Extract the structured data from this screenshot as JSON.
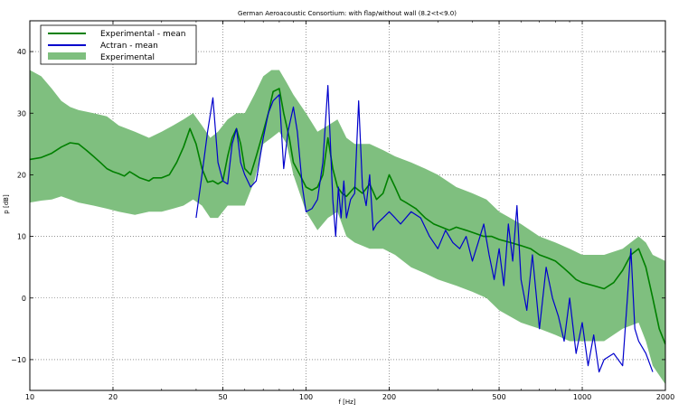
{
  "chart_data": {
    "type": "line",
    "title": "German Aeroacoustic Consortium: with flap/without wall (8.2<t<9.0)",
    "xlabel": "f [Hz]",
    "ylabel": "p [dB]",
    "xscale": "log",
    "xlim": [
      10,
      2000
    ],
    "ylim": [
      -15,
      45
    ],
    "grid": true,
    "legend_position": "top-left",
    "xticks": [
      10,
      20,
      50,
      100,
      200,
      500,
      1000,
      2000
    ],
    "xtick_labels": [
      "10",
      "20",
      "50",
      "100",
      "200",
      "500",
      "1000",
      "2000"
    ],
    "yticks": [
      -10,
      0,
      10,
      20,
      30,
      40
    ],
    "ytick_labels": [
      "−10",
      "0",
      "10",
      "20",
      "30",
      "40"
    ],
    "colors": {
      "experimental_mean": "#008000",
      "actran_mean": "#0000cc",
      "experimental_band": "#7fbf7f"
    },
    "band": {
      "name": "Experimental",
      "x": [
        10,
        11,
        12,
        13,
        14,
        15,
        17,
        19,
        21,
        24,
        27,
        30,
        33,
        36,
        39,
        42,
        45,
        48,
        52,
        56,
        60,
        65,
        70,
        75,
        80,
        85,
        90,
        100,
        110,
        120,
        130,
        140,
        150,
        170,
        190,
        210,
        240,
        270,
        300,
        350,
        400,
        450,
        500,
        600,
        700,
        800,
        900,
        1000,
        1200,
        1400,
        1600,
        1700,
        1800,
        2000
      ],
      "upper": [
        37,
        36,
        34,
        32,
        31,
        30.5,
        30,
        29.5,
        28,
        27,
        26,
        27,
        28,
        29,
        30,
        28,
        26,
        27,
        29,
        30,
        30,
        33,
        36,
        37,
        37,
        35,
        33,
        30,
        27,
        28,
        29,
        26,
        25,
        25,
        24,
        23,
        22,
        21,
        20,
        18,
        17,
        16,
        14,
        12,
        10,
        9,
        8,
        7,
        7,
        8,
        10,
        9,
        7,
        6
      ],
      "lower": [
        15.5,
        15.8,
        16,
        16.5,
        16,
        15.5,
        15,
        14.5,
        14,
        13.5,
        14,
        14,
        14.5,
        15,
        16,
        15,
        13,
        13,
        15,
        15,
        15,
        19,
        25,
        26,
        27,
        25,
        20,
        14,
        11,
        13,
        14,
        10,
        9,
        8,
        8,
        7,
        5,
        4,
        3,
        2,
        1,
        0,
        -2,
        -4,
        -5,
        -6,
        -7,
        -7,
        -7,
        -5,
        -4,
        -7,
        -11,
        -14
      ]
    },
    "series": [
      {
        "name": "Experimental - mean",
        "x": [
          10,
          11,
          12,
          13,
          14,
          15,
          16,
          17,
          18,
          19,
          20,
          21,
          22,
          23,
          24,
          25,
          27,
          28,
          30,
          32,
          34,
          36,
          38,
          40,
          42,
          44,
          46,
          48,
          50,
          52,
          54,
          56,
          58,
          60,
          63,
          66,
          70,
          73,
          76,
          80,
          83,
          87,
          90,
          95,
          100,
          105,
          110,
          115,
          120,
          125,
          130,
          135,
          140,
          150,
          160,
          170,
          180,
          190,
          200,
          210,
          220,
          230,
          250,
          270,
          290,
          310,
          330,
          350,
          380,
          410,
          440,
          470,
          500,
          550,
          600,
          650,
          700,
          750,
          800,
          850,
          900,
          950,
          1000,
          1100,
          1200,
          1300,
          1400,
          1500,
          1600,
          1700,
          1800,
          1900,
          2000
        ],
        "values": [
          22.5,
          22.8,
          23.5,
          24.5,
          25.2,
          25,
          24,
          23,
          22,
          21,
          20.5,
          20.2,
          19.8,
          20.5,
          20,
          19.5,
          19,
          19.5,
          19.5,
          20,
          22,
          24.5,
          27.5,
          25,
          21,
          18.8,
          19,
          18.5,
          19,
          23,
          26,
          27.5,
          25,
          21,
          20,
          23,
          27,
          30,
          33.5,
          34,
          30,
          26,
          22,
          20,
          18,
          17.5,
          18,
          20,
          26,
          21,
          18,
          17,
          16.5,
          18,
          17,
          18.5,
          16,
          17,
          20,
          18,
          16,
          15.5,
          14.5,
          13,
          12,
          11.5,
          11,
          11.5,
          11,
          10.5,
          10,
          10,
          9.5,
          9,
          8.5,
          8,
          7,
          6.5,
          6,
          5,
          4,
          3,
          2.5,
          2,
          1.5,
          2.5,
          4.5,
          7,
          8,
          5,
          0,
          -5,
          -7.5
        ]
      },
      {
        "name": "Actran - mean",
        "x": [
          40,
          42,
          44,
          46,
          48,
          50,
          52,
          54,
          56,
          58,
          60,
          63,
          66,
          70,
          73,
          76,
          80,
          83,
          86,
          90,
          93,
          97,
          100,
          105,
          110,
          115,
          120,
          125,
          128,
          131,
          134,
          137,
          140,
          145,
          150,
          155,
          160,
          165,
          170,
          175,
          180,
          190,
          200,
          210,
          220,
          240,
          260,
          280,
          300,
          320,
          340,
          360,
          380,
          400,
          420,
          440,
          460,
          480,
          500,
          520,
          540,
          560,
          580,
          600,
          630,
          660,
          700,
          740,
          780,
          820,
          860,
          900,
          950,
          1000,
          1050,
          1100,
          1150,
          1200,
          1300,
          1400,
          1500,
          1550,
          1600,
          1700,
          1800
        ],
        "values": [
          13,
          20,
          27,
          32.5,
          22,
          19,
          18.5,
          25,
          27.5,
          22,
          20,
          18,
          19,
          26,
          30,
          32,
          33,
          21,
          27,
          31,
          27,
          18,
          14,
          14.5,
          16,
          22,
          34.5,
          16,
          10,
          18,
          13,
          19,
          13,
          16,
          17,
          32,
          18,
          15,
          20,
          11,
          12,
          13,
          14,
          13,
          12,
          14,
          13,
          10,
          8,
          11,
          9,
          8,
          10,
          6,
          9,
          12,
          7,
          3,
          8,
          2,
          12,
          6,
          15,
          3,
          -2,
          7,
          -5,
          5,
          0,
          -3,
          -7,
          0,
          -9,
          -4,
          -11,
          -6,
          -12,
          -10,
          -9,
          -11,
          8,
          -5,
          -7,
          -9,
          -12
        ]
      }
    ]
  }
}
